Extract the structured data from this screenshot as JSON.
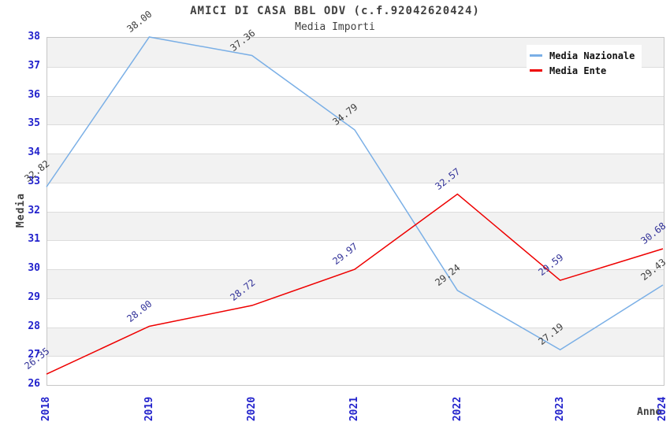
{
  "chart_data": {
    "type": "line",
    "title": "AMICI DI CASA BBL ODV (c.f.92042620424)",
    "subtitle": "Media Importi",
    "xlabel": "Anno",
    "ylabel": "Media",
    "categories": [
      "2018",
      "2019",
      "2020",
      "2021",
      "2022",
      "2023",
      "2024"
    ],
    "series": [
      {
        "name": "Media Nazionale",
        "color": "#7aafe6",
        "label_color": "#3d3d3d",
        "values": [
          32.82,
          38.0,
          37.36,
          34.79,
          29.24,
          27.19,
          29.43
        ]
      },
      {
        "name": "Media Ente",
        "color": "#ee0000",
        "label_color": "#333399",
        "values": [
          26.35,
          28.0,
          28.72,
          29.97,
          32.57,
          29.59,
          30.68
        ]
      }
    ],
    "ylim": [
      26,
      38
    ],
    "ytick_step": 1,
    "grid": "on",
    "gray_bands": "alternating horizontal bands on odd intervals (27-28, 29-30, ... 37-38)",
    "legend_position": "top-right",
    "colors": {
      "tick_label": "#2222cc",
      "title": "#404040",
      "band": "#f2f2f2",
      "gridline": "#dcdcdc",
      "axis_border": "#c6c6c6",
      "background": "#ffffff",
      "legend_text": "#111111"
    }
  }
}
